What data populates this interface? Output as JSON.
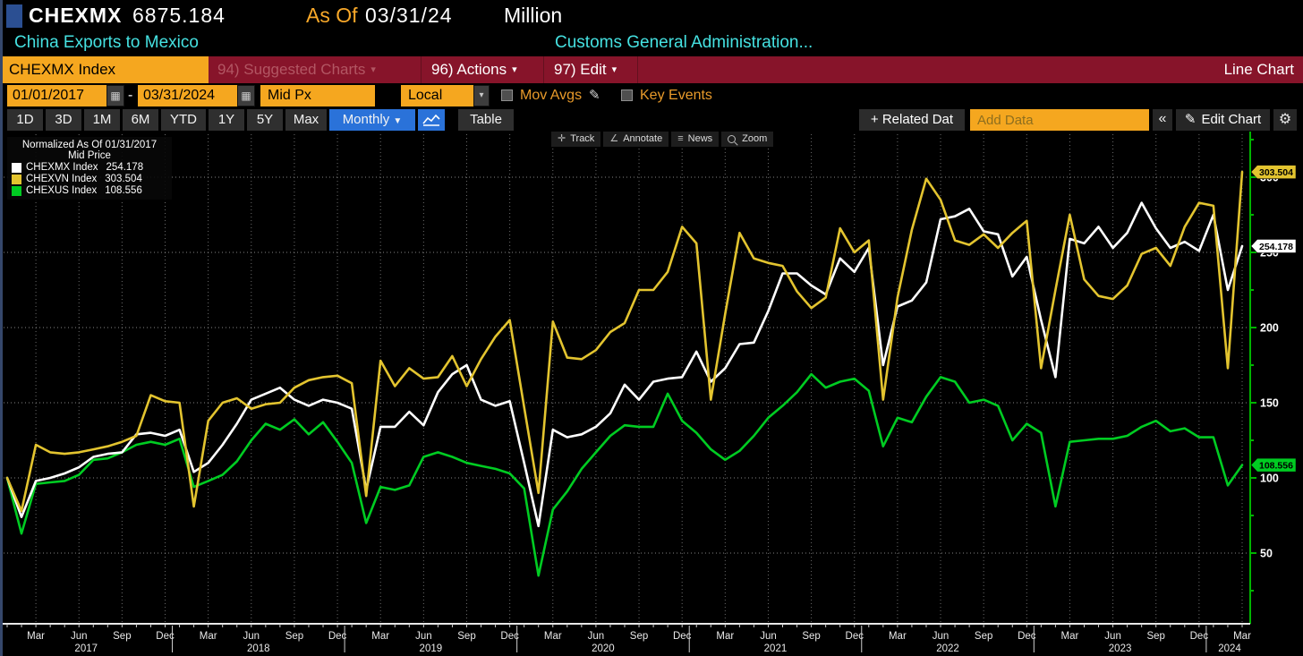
{
  "header": {
    "ticker": "CHEXMX",
    "last_value": "6875.184",
    "as_of_label": "As Of",
    "as_of_date": "03/31/24",
    "unit": "Million",
    "security_name": "China Exports to Mexico",
    "source": "Customs General Administration..."
  },
  "menubar": {
    "security_field": "CHEXMX Index",
    "suggested_charts": "94) Suggested Charts",
    "actions": "96) Actions",
    "edit": "97) Edit",
    "chart_type_label": "Line Chart"
  },
  "options": {
    "date_from": "01/01/2017",
    "date_separator": "-",
    "date_to": "03/31/2024",
    "price_field": "Mid Px",
    "currency": "Local CCY",
    "mov_avgs_label": "Mov Avgs",
    "key_events_label": "Key Events"
  },
  "toolbar2": {
    "periods": [
      "1D",
      "3D",
      "1M",
      "6M",
      "YTD",
      "1Y",
      "5Y",
      "Max"
    ],
    "frequency": "Monthly",
    "table_label": "Table",
    "related_data_label": "+ Related Dat",
    "add_data_placeholder": "Add Data",
    "collapse_label": "«",
    "edit_chart_label": "Edit Chart"
  },
  "chart_tools": [
    {
      "label": "Track",
      "icon": "crosshair-icon"
    },
    {
      "label": "Annotate",
      "icon": "angle-icon"
    },
    {
      "label": "News",
      "icon": "list-icon"
    },
    {
      "label": "Zoom",
      "icon": "magnifier-icon"
    }
  ],
  "legend": {
    "title": "Normalized As Of 01/31/2017",
    "subtitle": "Mid Price",
    "items": [
      {
        "label": "CHEXMX Index",
        "value": "254.178",
        "color": "#ffffff"
      },
      {
        "label": "CHEXVN Index",
        "value": "303.504",
        "color": "#e3c42f"
      },
      {
        "label": "CHEXUS Index",
        "value": "108.556",
        "color": "#00cc22"
      }
    ]
  },
  "chart_data": {
    "type": "line",
    "normalized_as_of": "01/31/2017",
    "price_basis": "Mid Price",
    "x": [
      "2017-01",
      "2017-02",
      "2017-03",
      "2017-04",
      "2017-05",
      "2017-06",
      "2017-07",
      "2017-08",
      "2017-09",
      "2017-10",
      "2017-11",
      "2017-12",
      "2018-01",
      "2018-02",
      "2018-03",
      "2018-04",
      "2018-05",
      "2018-06",
      "2018-07",
      "2018-08",
      "2018-09",
      "2018-10",
      "2018-11",
      "2018-12",
      "2019-01",
      "2019-02",
      "2019-03",
      "2019-04",
      "2019-05",
      "2019-06",
      "2019-07",
      "2019-08",
      "2019-09",
      "2019-10",
      "2019-11",
      "2019-12",
      "2020-01",
      "2020-02",
      "2020-03",
      "2020-04",
      "2020-05",
      "2020-06",
      "2020-07",
      "2020-08",
      "2020-09",
      "2020-10",
      "2020-11",
      "2020-12",
      "2021-01",
      "2021-02",
      "2021-03",
      "2021-04",
      "2021-05",
      "2021-06",
      "2021-07",
      "2021-08",
      "2021-09",
      "2021-10",
      "2021-11",
      "2021-12",
      "2022-01",
      "2022-02",
      "2022-03",
      "2022-04",
      "2022-05",
      "2022-06",
      "2022-07",
      "2022-08",
      "2022-09",
      "2022-10",
      "2022-11",
      "2022-12",
      "2023-01",
      "2023-02",
      "2023-03",
      "2023-04",
      "2023-05",
      "2023-06",
      "2023-07",
      "2023-08",
      "2023-09",
      "2023-10",
      "2023-11",
      "2023-12",
      "2024-01",
      "2024-02",
      "2024-03"
    ],
    "series": [
      {
        "name": "CHEXMX Index",
        "color": "#ffffff",
        "last_label": "254.178",
        "values": [
          100,
          74,
          98,
          100,
          103,
          107,
          114,
          116,
          117,
          129,
          130,
          128,
          132,
          104,
          110,
          122,
          136,
          152,
          156,
          160,
          152,
          148,
          152,
          150,
          146,
          92,
          134,
          134,
          144,
          135,
          157,
          169,
          175,
          152,
          148,
          151,
          110,
          68,
          132,
          127,
          129,
          134,
          143,
          162,
          152,
          164,
          166,
          167,
          184,
          164,
          173,
          189,
          190,
          211,
          236,
          236,
          228,
          222,
          246,
          237,
          253,
          175,
          214,
          218,
          230,
          272,
          274,
          279,
          264,
          262,
          234,
          247,
          205,
          167,
          259,
          256,
          267,
          253,
          263,
          283,
          266,
          253,
          257,
          251,
          275,
          225,
          254.178
        ]
      },
      {
        "name": "CHEXVN Index",
        "color": "#e3c42f",
        "last_label": "303.504",
        "values": [
          100,
          78,
          122,
          117,
          116,
          117,
          119,
          121,
          124,
          128,
          155,
          151,
          150,
          81,
          138,
          150,
          153,
          146,
          149,
          150,
          160,
          165,
          167,
          168,
          163,
          88,
          178,
          161,
          173,
          166,
          167,
          181,
          161,
          179,
          194,
          205,
          147,
          90,
          204,
          180,
          179,
          185,
          197,
          203,
          225,
          225,
          237,
          267,
          256,
          152,
          209,
          263,
          246,
          243,
          241,
          224,
          213,
          220,
          266,
          250,
          258,
          152,
          220,
          265,
          299,
          285,
          258,
          255,
          262,
          253,
          263,
          271,
          173,
          225,
          275,
          232,
          221,
          219,
          228,
          249,
          253,
          241,
          267,
          283,
          281,
          173,
          303.504
        ]
      },
      {
        "name": "CHEXUS Index",
        "color": "#00cc22",
        "last_label": "108.556",
        "values": [
          100,
          63,
          96,
          97,
          98,
          102,
          112,
          113,
          117,
          122,
          124,
          122,
          126,
          94,
          98,
          102,
          111,
          125,
          136,
          132,
          139,
          129,
          137,
          124,
          110,
          70,
          94,
          92,
          95,
          114,
          117,
          114,
          110,
          108,
          106,
          103,
          93,
          35,
          79,
          91,
          106,
          117,
          128,
          135,
          134,
          134,
          156,
          138,
          130,
          119,
          112,
          118,
          128,
          140,
          148,
          157,
          169,
          160,
          164,
          166,
          158,
          121,
          140,
          137,
          154,
          167,
          164,
          150,
          152,
          148,
          125,
          136,
          130,
          81,
          124,
          125,
          126,
          126,
          128,
          134,
          138,
          131,
          133,
          127,
          127,
          95,
          108.556
        ]
      }
    ],
    "y_axis": {
      "ticks": [
        50,
        100,
        150,
        200,
        250,
        300
      ],
      "minor_step": 25,
      "min": 35,
      "max": 304,
      "side": "right"
    },
    "x_axis": {
      "quarter_labels": {
        "03": "Mar",
        "06": "Jun",
        "09": "Sep",
        "12": "Dec"
      },
      "years": [
        "2017",
        "2018",
        "2019",
        "2020",
        "2021",
        "2022",
        "2023",
        "2024"
      ]
    },
    "grid": true,
    "legend_position": "top-left"
  }
}
